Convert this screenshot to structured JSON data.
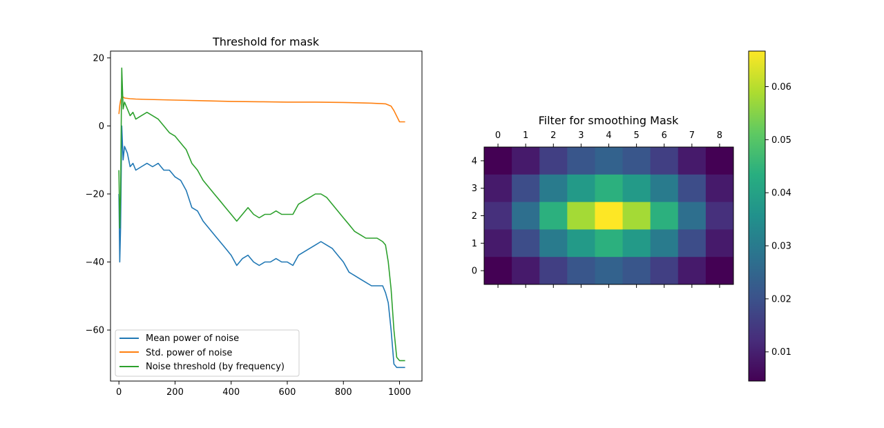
{
  "chart_data": [
    {
      "type": "line",
      "title": "Threshold for mask",
      "xlabel": "",
      "ylabel": "",
      "xlim": [
        -30,
        1080
      ],
      "ylim": [
        -75,
        22
      ],
      "xticks": [
        0,
        200,
        400,
        600,
        800,
        1000
      ],
      "yticks": [
        20,
        0,
        -20,
        -40,
        -60
      ],
      "grid": false,
      "legend": "lower-left",
      "series": [
        {
          "name": "Mean power of noise",
          "color": "#1f77b4",
          "x": [
            0,
            3,
            6,
            10,
            15,
            20,
            30,
            40,
            50,
            60,
            80,
            100,
            120,
            140,
            160,
            180,
            200,
            220,
            240,
            260,
            280,
            300,
            320,
            340,
            360,
            380,
            400,
            420,
            440,
            460,
            480,
            500,
            520,
            540,
            560,
            580,
            600,
            620,
            640,
            660,
            680,
            700,
            720,
            740,
            760,
            780,
            800,
            820,
            840,
            860,
            880,
            900,
            920,
            940,
            950,
            960,
            970,
            980,
            990,
            1000,
            1020
          ],
          "y": [
            -20,
            -40,
            -30,
            0,
            -10,
            -6,
            -8,
            -12,
            -11,
            -13,
            -12,
            -11,
            -12,
            -11,
            -13,
            -13,
            -15,
            -16,
            -19,
            -24,
            -25,
            -28,
            -30,
            -32,
            -34,
            -36,
            -38,
            -41,
            -39,
            -38,
            -40,
            -41,
            -40,
            -40,
            -39,
            -40,
            -40,
            -41,
            -38,
            -37,
            -36,
            -35,
            -34,
            -35,
            -36,
            -38,
            -40,
            -43,
            -44,
            -45,
            -46,
            -47,
            -47,
            -47,
            -49,
            -52,
            -60,
            -70,
            -71,
            -71,
            -71
          ]
        },
        {
          "name": "Std. power of noise",
          "color": "#ff7f0e",
          "x": [
            0,
            3,
            6,
            10,
            15,
            20,
            40,
            60,
            100,
            150,
            200,
            300,
            400,
            500,
            600,
            700,
            800,
            900,
            950,
            970,
            980,
            1000,
            1020
          ],
          "y": [
            3.5,
            6,
            7.5,
            8.5,
            8.5,
            8.2,
            8.0,
            7.9,
            7.8,
            7.7,
            7.6,
            7.4,
            7.2,
            7.1,
            7.0,
            7.0,
            6.9,
            6.7,
            6.5,
            5.8,
            4.5,
            1.2,
            1.2
          ]
        },
        {
          "name": "Noise threshold (by frequency)",
          "color": "#2ca02c",
          "x": [
            0,
            3,
            6,
            10,
            15,
            20,
            30,
            40,
            50,
            60,
            80,
            100,
            120,
            140,
            160,
            180,
            200,
            220,
            240,
            260,
            280,
            300,
            320,
            340,
            360,
            380,
            400,
            420,
            440,
            460,
            480,
            500,
            520,
            540,
            560,
            580,
            600,
            620,
            640,
            660,
            680,
            700,
            720,
            740,
            760,
            780,
            800,
            820,
            840,
            860,
            880,
            900,
            920,
            940,
            950,
            960,
            970,
            980,
            990,
            1000,
            1020
          ],
          "y": [
            -13,
            -30,
            -20,
            17,
            5,
            7,
            5,
            3,
            4,
            2,
            3,
            4,
            3,
            2,
            0,
            -2,
            -3,
            -5,
            -7,
            -11,
            -13,
            -16,
            -18,
            -20,
            -22,
            -24,
            -26,
            -28,
            -26,
            -24,
            -26,
            -27,
            -26,
            -26,
            -25,
            -26,
            -26,
            -26,
            -23,
            -22,
            -21,
            -20,
            -20,
            -21,
            -23,
            -25,
            -27,
            -29,
            -31,
            -32,
            -33,
            -33,
            -33,
            -34,
            -35,
            -40,
            -48,
            -60,
            -68,
            -69,
            -69
          ]
        }
      ]
    },
    {
      "type": "heatmap",
      "title": "Filter for smoothing Mask",
      "xlabel": "",
      "ylabel": "",
      "x_categories": [
        "0",
        "1",
        "2",
        "3",
        "4",
        "5",
        "6",
        "7",
        "8"
      ],
      "y_categories": [
        "0",
        "1",
        "2",
        "3",
        "4"
      ],
      "colorscale": "viridis",
      "vmin": 0.0045,
      "vmax": 0.0667,
      "colorbar_ticks": [
        "0.01",
        "0.02",
        "0.03",
        "0.04",
        "0.05",
        "0.06"
      ],
      "rows": [
        {
          "y": "4",
          "values": [
            0.0045,
            0.009,
            0.016,
            0.021,
            0.024,
            0.021,
            0.016,
            0.009,
            0.0045
          ]
        },
        {
          "y": "3",
          "values": [
            0.009,
            0.019,
            0.03,
            0.038,
            0.044,
            0.038,
            0.03,
            0.019,
            0.009
          ]
        },
        {
          "y": "2",
          "values": [
            0.013,
            0.027,
            0.044,
            0.058,
            0.0667,
            0.058,
            0.044,
            0.027,
            0.013
          ]
        },
        {
          "y": "1",
          "values": [
            0.009,
            0.019,
            0.03,
            0.038,
            0.044,
            0.038,
            0.03,
            0.019,
            0.009
          ]
        },
        {
          "y": "0",
          "values": [
            0.0045,
            0.009,
            0.016,
            0.021,
            0.024,
            0.021,
            0.016,
            0.009,
            0.0045
          ]
        }
      ]
    }
  ]
}
